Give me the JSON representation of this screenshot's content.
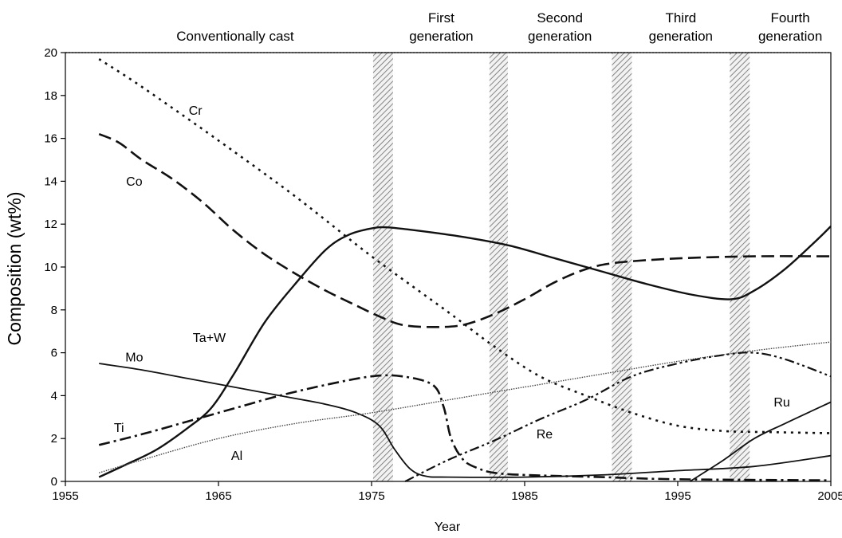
{
  "chart_data": {
    "type": "line",
    "title": "",
    "xlabel": "Year",
    "ylabel": "Composition (wt%)",
    "xlim": [
      1955,
      2005
    ],
    "ylim": [
      0,
      20
    ],
    "x_ticks": [
      1955,
      1965,
      1975,
      1985,
      1995,
      2005
    ],
    "y_ticks": [
      0,
      2,
      4,
      6,
      8,
      10,
      12,
      14,
      16,
      18,
      20
    ],
    "grid": false,
    "legend": "none",
    "eras": [
      {
        "label": "Conventionally cast",
        "lines": [
          "Conventionally cast"
        ]
      },
      {
        "label": "First generation",
        "lines": [
          "First",
          "generation"
        ]
      },
      {
        "label": "Second generation",
        "lines": [
          "Second",
          "generation"
        ]
      },
      {
        "label": "Third generation",
        "lines": [
          "Third",
          "generation"
        ]
      },
      {
        "label": "Fourth generation",
        "lines": [
          "Fourth",
          "generation"
        ]
      }
    ],
    "era_boundaries": [
      {
        "from": 1975.1,
        "to": 1976.4
      },
      {
        "from": 1982.7,
        "to": 1983.9
      },
      {
        "from": 1990.7,
        "to": 1992.0
      },
      {
        "from": 1998.4,
        "to": 1999.7
      }
    ],
    "series": [
      {
        "name": "Cr",
        "style": "dotted",
        "x": [
          1957.2,
          1960,
          1965,
          1970,
          1975,
          1980,
          1983,
          1986,
          1989,
          1992,
          1995,
          1998,
          2001,
          2005
        ],
        "y": [
          19.7,
          18.4,
          15.9,
          13.3,
          10.5,
          7.9,
          6.3,
          4.9,
          4.0,
          3.2,
          2.6,
          2.35,
          2.3,
          2.25
        ]
      },
      {
        "name": "Co",
        "style": "dashed",
        "x": [
          1957.2,
          1958.5,
          1960,
          1962,
          1964,
          1966,
          1968,
          1970,
          1972,
          1974,
          1975.5,
          1977,
          1979,
          1981,
          1983,
          1985,
          1987,
          1989,
          1991,
          1995,
          2000,
          2005
        ],
        "y": [
          16.2,
          15.8,
          15.0,
          14.1,
          13.0,
          11.7,
          10.6,
          9.7,
          8.9,
          8.2,
          7.7,
          7.3,
          7.2,
          7.3,
          7.8,
          8.5,
          9.3,
          9.9,
          10.2,
          10.4,
          10.5,
          10.5
        ]
      },
      {
        "name": "Ta+W",
        "style": "solid",
        "x": [
          1957.2,
          1959,
          1961,
          1963,
          1964.5,
          1966,
          1968,
          1970,
          1972,
          1973.5,
          1975,
          1976,
          1978,
          1981,
          1984,
          1987,
          1990,
          1993,
          1996,
          1998.5,
          2000,
          2002,
          2004,
          2005
        ],
        "y": [
          0.2,
          0.8,
          1.5,
          2.5,
          3.4,
          5.0,
          7.4,
          9.2,
          10.8,
          11.5,
          11.8,
          11.85,
          11.7,
          11.4,
          11.0,
          10.4,
          9.8,
          9.2,
          8.7,
          8.5,
          8.9,
          9.9,
          11.2,
          11.9
        ]
      },
      {
        "name": "Mo",
        "style": "solid-thin",
        "x": [
          1957.2,
          1960,
          1963,
          1966,
          1969,
          1972,
          1974,
          1975.5,
          1976.5,
          1977.5,
          1978.5,
          1980,
          1985,
          1990,
          1995,
          2000,
          2005
        ],
        "y": [
          5.5,
          5.2,
          4.8,
          4.4,
          4.0,
          3.6,
          3.2,
          2.6,
          1.5,
          0.6,
          0.25,
          0.2,
          0.2,
          0.3,
          0.5,
          0.7,
          1.2
        ]
      },
      {
        "name": "Ti",
        "style": "dash-dot",
        "x": [
          1957.2,
          1960,
          1963,
          1966,
          1969,
          1972,
          1975,
          1977,
          1979,
          1979.7,
          1980.2,
          1981,
          1982,
          1983,
          1985,
          1990,
          1995,
          2005
        ],
        "y": [
          1.7,
          2.2,
          2.8,
          3.4,
          4.0,
          4.5,
          4.9,
          4.9,
          4.5,
          3.5,
          2.0,
          1.0,
          0.6,
          0.4,
          0.3,
          0.2,
          0.1,
          0.05
        ]
      },
      {
        "name": "Al",
        "style": "fine-dotted",
        "x": [
          1957.2,
          1960,
          1965,
          1970,
          1975,
          1980,
          1985,
          1990,
          1995,
          2000,
          2005
        ],
        "y": [
          0.4,
          1.0,
          2.0,
          2.7,
          3.2,
          3.8,
          4.4,
          5.0,
          5.6,
          6.1,
          6.5
        ]
      },
      {
        "name": "Re",
        "style": "dash-dot-dot",
        "x": [
          1977.2,
          1980,
          1983,
          1986,
          1989,
          1992,
          1995,
          1998,
          2000,
          2002,
          2005
        ],
        "y": [
          0.0,
          1.0,
          1.9,
          2.9,
          3.8,
          4.9,
          5.5,
          5.9,
          6.0,
          5.7,
          4.9
        ]
      },
      {
        "name": "Ru",
        "style": "solid-thin",
        "x": [
          1995.8,
          1998,
          2000,
          2002,
          2005
        ],
        "y": [
          0.0,
          1.0,
          2.0,
          2.7,
          3.7
        ]
      }
    ],
    "annotations": [
      {
        "text": "Cr",
        "x": 1963.5,
        "y": 17.1
      },
      {
        "text": "Co",
        "x": 1959.5,
        "y": 13.8
      },
      {
        "text": "Ta+W",
        "x": 1964.4,
        "y": 6.5
      },
      {
        "text": "Mo",
        "x": 1959.5,
        "y": 5.6
      },
      {
        "text": "Ti",
        "x": 1958.5,
        "y": 2.3
      },
      {
        "text": "Al",
        "x": 1966.2,
        "y": 1.0
      },
      {
        "text": "Re",
        "x": 1986.3,
        "y": 2.0
      },
      {
        "text": "Ru",
        "x": 2001.8,
        "y": 3.5
      }
    ]
  }
}
